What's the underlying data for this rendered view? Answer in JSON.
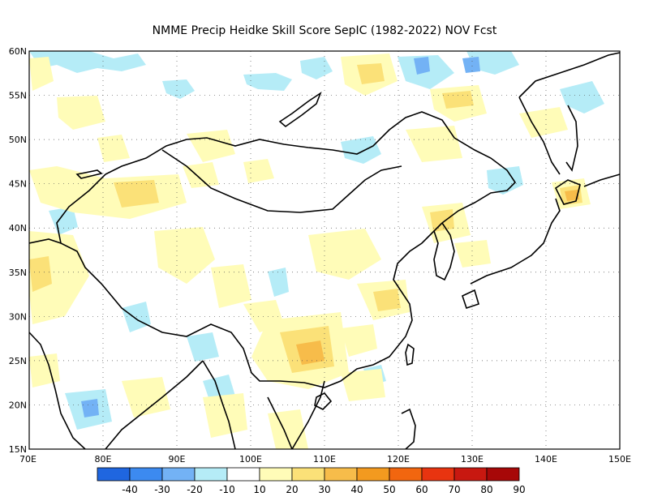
{
  "title": "NMME Precip Heidke Skill Score SepIC (1982-2022) NOV Fcst",
  "map": {
    "lon_range": [
      70,
      150
    ],
    "lat_range": [
      15,
      60
    ],
    "lon_labels": [
      "70E",
      "80E",
      "90E",
      "100E",
      "110E",
      "120E",
      "130E",
      "140E",
      "150E"
    ],
    "lat_labels": [
      "15N",
      "20N",
      "25N",
      "30N",
      "35N",
      "40N",
      "45N",
      "50N",
      "55N",
      "60N"
    ],
    "gridlines": "dotted"
  },
  "colorbar": {
    "labels": [
      "-40",
      "-30",
      "-20",
      "-10",
      "10",
      "20",
      "30",
      "40",
      "50",
      "60",
      "70",
      "80",
      "90"
    ],
    "colors": [
      "#1f66e0",
      "#3c8af0",
      "#73b2f5",
      "#b5ecf7",
      "#ffffff",
      "#fffcb8",
      "#fbe178",
      "#f7bc4a",
      "#f39a1f",
      "#f2660f",
      "#e83410",
      "#c81810",
      "#a70808"
    ]
  },
  "fill_colors": {
    "neg10": "#b5ecf7",
    "neg20": "#73b2f5",
    "neg30": "#3c8af0",
    "pos10": "#fffcb8",
    "pos20": "#fbe178",
    "pos30": "#f7bc4a",
    "pos40": "#f39a1f"
  }
}
